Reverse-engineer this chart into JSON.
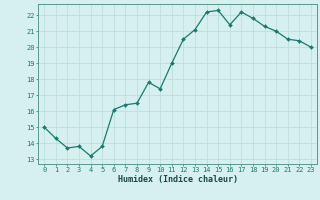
{
  "x": [
    0,
    1,
    2,
    3,
    4,
    5,
    6,
    7,
    8,
    9,
    10,
    11,
    12,
    13,
    14,
    15,
    16,
    17,
    18,
    19,
    20,
    21,
    22,
    23
  ],
  "y": [
    15.0,
    14.3,
    13.7,
    13.8,
    13.2,
    13.8,
    16.1,
    16.4,
    16.5,
    17.8,
    17.4,
    19.0,
    20.5,
    21.1,
    22.2,
    22.3,
    21.4,
    22.2,
    21.8,
    21.3,
    21.0,
    20.5,
    20.4,
    20.0
  ],
  "line_color": "#1a7a6e",
  "marker": "D",
  "marker_size": 2.0,
  "bg_color": "#d6f0f0",
  "grid_color": "#c0dede",
  "ylabel_ticks": [
    13,
    14,
    15,
    16,
    17,
    18,
    19,
    20,
    21,
    22
  ],
  "ylim": [
    12.7,
    22.7
  ],
  "xlim": [
    -0.5,
    23.5
  ],
  "xlabel": "Humidex (Indice chaleur)",
  "tick_color": "#1a7a6e",
  "axis_color": "#5a9a8a",
  "font_color": "#1a4a3a",
  "tick_fontsize": 5.0,
  "xlabel_fontsize": 6.0,
  "linewidth": 0.9
}
